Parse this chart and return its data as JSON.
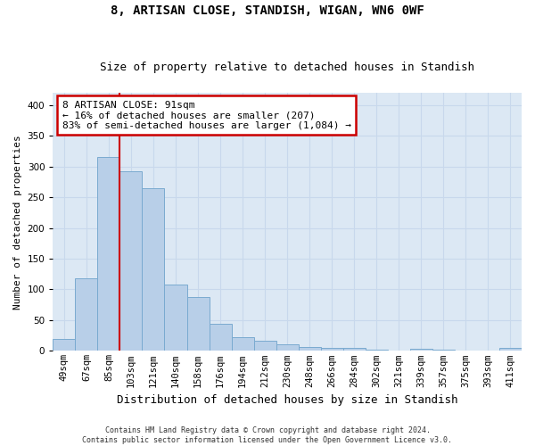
{
  "title1": "8, ARTISAN CLOSE, STANDISH, WIGAN, WN6 0WF",
  "title2": "Size of property relative to detached houses in Standish",
  "xlabel": "Distribution of detached houses by size in Standish",
  "ylabel": "Number of detached properties",
  "categories": [
    "49sqm",
    "67sqm",
    "85sqm",
    "103sqm",
    "121sqm",
    "140sqm",
    "158sqm",
    "176sqm",
    "194sqm",
    "212sqm",
    "230sqm",
    "248sqm",
    "266sqm",
    "284sqm",
    "302sqm",
    "321sqm",
    "339sqm",
    "357sqm",
    "375sqm",
    "393sqm",
    "411sqm"
  ],
  "values": [
    20,
    118,
    315,
    293,
    265,
    108,
    87,
    44,
    22,
    16,
    10,
    6,
    5,
    5,
    2,
    0,
    3,
    2,
    0,
    1,
    5
  ],
  "bar_color": "#b8cfe8",
  "bar_edge_color": "#7aaad0",
  "annotation_text": "8 ARTISAN CLOSE: 91sqm\n← 16% of detached houses are smaller (207)\n83% of semi-detached houses are larger (1,084) →",
  "annotation_box_color": "#ffffff",
  "annotation_box_edge": "#cc0000",
  "line_color": "#cc0000",
  "grid_color": "#c8d8ec",
  "background_color": "#dce8f4",
  "footer_text": "Contains HM Land Registry data © Crown copyright and database right 2024.\nContains public sector information licensed under the Open Government Licence v3.0.",
  "ylim": [
    0,
    420
  ],
  "yticks": [
    0,
    50,
    100,
    150,
    200,
    250,
    300,
    350,
    400
  ],
  "title1_fontsize": 10,
  "title2_fontsize": 9,
  "tick_fontsize": 7.5,
  "ylabel_fontsize": 8,
  "xlabel_fontsize": 9,
  "annot_fontsize": 8,
  "footer_fontsize": 6
}
